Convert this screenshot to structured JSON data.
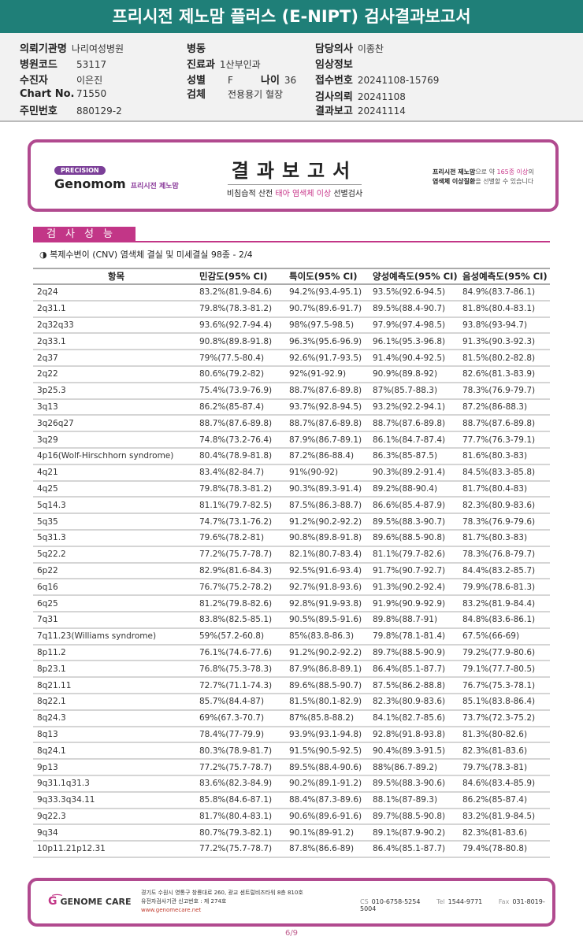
{
  "title": "프리시전 제노맘 플러스 (E-NIPT) 검사결과보고서",
  "patient": {
    "hospital_label": "의뢰기관명",
    "hospital": "나리여성병원",
    "code_label": "병원코드",
    "code": "53117",
    "name_label": "수진자",
    "name": "이은진",
    "chart_label": "Chart No.",
    "chart": "71550",
    "id_label": "주민번호",
    "id": "880129-2",
    "ward_label": "병동",
    "ward": "",
    "dept_label": "진료과",
    "dept": "1산부인과",
    "sex_label": "성별",
    "sex": "F",
    "age_label": "나이",
    "age": "36",
    "specimen_label": "검체",
    "specimen": "전용용기 혈장",
    "doctor_label": "담당의사",
    "doctor": "이종찬",
    "clinical_label": "임상정보",
    "clinical": "",
    "receipt_label": "접수번호",
    "receipt": "20241108-15769",
    "request_label": "검사의뢰",
    "request": "20241108",
    "report_label": "결과보고",
    "report": "20241114"
  },
  "banner": {
    "precision": "PRECISION",
    "brand": "Genomom",
    "brand_kr": "프리시전 제노맘",
    "title": "결과보고서",
    "sub_a": "비침습적 산전 ",
    "sub_b": "태아 염색체 이상",
    "sub_c": " 선별검사",
    "note_a": "프리시전 제노맘",
    "note_b": "으로 약 ",
    "note_c": "165종 이상",
    "note_d": "의",
    "note_e": "염색체 이상질환",
    "note_f": "을 선별할 수 있습니다"
  },
  "section": {
    "title": "검사성능",
    "subtitle": "◑ 복제수변이 (CNV) 염색체 결실 및 미세결실 98종 - 2/4"
  },
  "table": {
    "headers": [
      "항목",
      "민감도(95% CI)",
      "특이도(95% CI)",
      "양성예측도(95% CI)",
      "음성예측도(95% CI)"
    ],
    "rows": [
      [
        "2q24",
        "83.2%(81.9-84.6)",
        "94.2%(93.4-95.1)",
        "93.5%(92.6-94.5)",
        "84.9%(83.7-86.1)"
      ],
      [
        "2q31.1",
        "79.8%(78.3-81.2)",
        "90.7%(89.6-91.7)",
        "89.5%(88.4-90.7)",
        "81.8%(80.4-83.1)"
      ],
      [
        "2q32q33",
        "93.6%(92.7-94.4)",
        "98%(97.5-98.5)",
        "97.9%(97.4-98.5)",
        "93.8%(93-94.7)"
      ],
      [
        "2q33.1",
        "90.8%(89.8-91.8)",
        "96.3%(95.6-96.9)",
        "96.1%(95.3-96.8)",
        "91.3%(90.3-92.3)"
      ],
      [
        "2q37",
        "79%(77.5-80.4)",
        "92.6%(91.7-93.5)",
        "91.4%(90.4-92.5)",
        "81.5%(80.2-82.8)"
      ],
      [
        "2q22",
        "80.6%(79.2-82)",
        "92%(91-92.9)",
        "90.9%(89.8-92)",
        "82.6%(81.3-83.9)"
      ],
      [
        "3p25.3",
        "75.4%(73.9-76.9)",
        "88.7%(87.6-89.8)",
        "87%(85.7-88.3)",
        "78.3%(76.9-79.7)"
      ],
      [
        "3q13",
        "86.2%(85-87.4)",
        "93.7%(92.8-94.5)",
        "93.2%(92.2-94.1)",
        "87.2%(86-88.3)"
      ],
      [
        "3q26q27",
        "88.7%(87.6-89.8)",
        "88.7%(87.6-89.8)",
        "88.7%(87.6-89.8)",
        "88.7%(87.6-89.8)"
      ],
      [
        "3q29",
        "74.8%(73.2-76.4)",
        "87.9%(86.7-89.1)",
        "86.1%(84.7-87.4)",
        "77.7%(76.3-79.1)"
      ],
      [
        "4p16(Wolf-Hirschhorn syndrome)",
        "80.4%(78.9-81.8)",
        "87.2%(86-88.4)",
        "86.3%(85-87.5)",
        "81.6%(80.3-83)"
      ],
      [
        "4q21",
        "83.4%(82-84.7)",
        "91%(90-92)",
        "90.3%(89.2-91.4)",
        "84.5%(83.3-85.8)"
      ],
      [
        "4q25",
        "79.8%(78.3-81.2)",
        "90.3%(89.3-91.4)",
        "89.2%(88-90.4)",
        "81.7%(80.4-83)"
      ],
      [
        "5q14.3",
        "81.1%(79.7-82.5)",
        "87.5%(86.3-88.7)",
        "86.6%(85.4-87.9)",
        "82.3%(80.9-83.6)"
      ],
      [
        "5q35",
        "74.7%(73.1-76.2)",
        "91.2%(90.2-92.2)",
        "89.5%(88.3-90.7)",
        "78.3%(76.9-79.6)"
      ],
      [
        "5q31.3",
        "79.6%(78.2-81)",
        "90.8%(89.8-91.8)",
        "89.6%(88.5-90.8)",
        "81.7%(80.3-83)"
      ],
      [
        "5q22.2",
        "77.2%(75.7-78.7)",
        "82.1%(80.7-83.4)",
        "81.1%(79.7-82.6)",
        "78.3%(76.8-79.7)"
      ],
      [
        "6p22",
        "82.9%(81.6-84.3)",
        "92.5%(91.6-93.4)",
        "91.7%(90.7-92.7)",
        "84.4%(83.2-85.7)"
      ],
      [
        "6q16",
        "76.7%(75.2-78.2)",
        "92.7%(91.8-93.6)",
        "91.3%(90.2-92.4)",
        "79.9%(78.6-81.3)"
      ],
      [
        "6q25",
        "81.2%(79.8-82.6)",
        "92.8%(91.9-93.8)",
        "91.9%(90.9-92.9)",
        "83.2%(81.9-84.4)"
      ],
      [
        "7q31",
        "83.8%(82.5-85.1)",
        "90.5%(89.5-91.6)",
        "89.8%(88.7-91)",
        "84.8%(83.6-86.1)"
      ],
      [
        "7q11.23(Williams syndrome)",
        "59%(57.2-60.8)",
        "85%(83.8-86.3)",
        "79.8%(78.1-81.4)",
        "67.5%(66-69)"
      ],
      [
        "8p11.2",
        "76.1%(74.6-77.6)",
        "91.2%(90.2-92.2)",
        "89.7%(88.5-90.9)",
        "79.2%(77.9-80.6)"
      ],
      [
        "8p23.1",
        "76.8%(75.3-78.3)",
        "87.9%(86.8-89.1)",
        "86.4%(85.1-87.7)",
        "79.1%(77.7-80.5)"
      ],
      [
        "8q21.11",
        "72.7%(71.1-74.3)",
        "89.6%(88.5-90.7)",
        "87.5%(86.2-88.8)",
        "76.7%(75.3-78.1)"
      ],
      [
        "8q22.1",
        "85.7%(84.4-87)",
        "81.5%(80.1-82.9)",
        "82.3%(80.9-83.6)",
        "85.1%(83.8-86.4)"
      ],
      [
        "8q24.3",
        "69%(67.3-70.7)",
        "87%(85.8-88.2)",
        "84.1%(82.7-85.6)",
        "73.7%(72.3-75.2)"
      ],
      [
        "8q13",
        "78.4%(77-79.9)",
        "93.9%(93.1-94.8)",
        "92.8%(91.8-93.8)",
        "81.3%(80-82.6)"
      ],
      [
        "8q24.1",
        "80.3%(78.9-81.7)",
        "91.5%(90.5-92.5)",
        "90.4%(89.3-91.5)",
        "82.3%(81-83.6)"
      ],
      [
        "9p13",
        "77.2%(75.7-78.7)",
        "89.5%(88.4-90.6)",
        "88%(86.7-89.2)",
        "79.7%(78.3-81)"
      ],
      [
        "9q31.1q31.3",
        "83.6%(82.3-84.9)",
        "90.2%(89.1-91.2)",
        "89.5%(88.3-90.6)",
        "84.6%(83.4-85.9)"
      ],
      [
        "9q33.3q34.11",
        "85.8%(84.6-87.1)",
        "88.4%(87.3-89.6)",
        "88.1%(87-89.3)",
        "86.2%(85-87.4)"
      ],
      [
        "9q22.3",
        "81.7%(80.4-83.1)",
        "90.6%(89.6-91.6)",
        "89.7%(88.5-90.8)",
        "83.2%(81.9-84.5)"
      ],
      [
        "9q34",
        "80.7%(79.3-82.1)",
        "90.1%(89-91.2)",
        "89.1%(87.9-90.2)",
        "82.3%(81-83.6)"
      ],
      [
        "10p11.21p12.31",
        "77.2%(75.7-78.7)",
        "87.8%(86.6-89)",
        "86.4%(85.1-87.7)",
        "79.4%(78-80.8)"
      ]
    ]
  },
  "footer": {
    "logo": "GENOME CARE",
    "address": "경기도 수원시 영통구 창룡대로 260, 광교 센트럴비즈타워 8층 810호",
    "license": "유전자검사기관 신고번호 : 제 274호",
    "url": "www.genomecare.net",
    "cs_label": "CS",
    "cs": "010-6758-5254",
    "tel_label": "Tel",
    "tel": "1544-9771",
    "fax_label": "Fax",
    "fax": "031-8019-5004"
  },
  "page": "6/9",
  "colors": {
    "title_bar": "#1f7f78",
    "accent": "#c23687",
    "frame": "#b14a8f"
  }
}
